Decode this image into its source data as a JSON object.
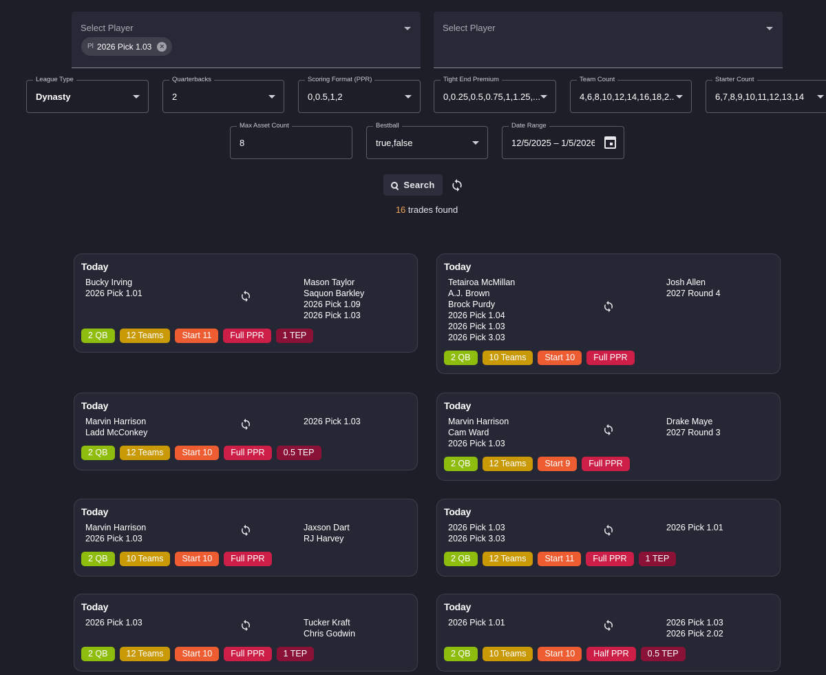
{
  "filters": {
    "player1": {
      "label": "Select Player",
      "chip_avatar": "Pl",
      "chip_label": "2026 Pick 1.03"
    },
    "player2": {
      "label": "Select Player"
    },
    "league_type": {
      "label": "League Type",
      "value": "Dynasty"
    },
    "quarterbacks": {
      "label": "Quarterbacks",
      "value": "2"
    },
    "scoring_format": {
      "label": "Scoring Format (PPR)",
      "value": "0,0.5,1,2"
    },
    "tight_end_premium": {
      "label": "Tight End Premium",
      "value": "0,0.25,0.5,0.75,1,1.25,..."
    },
    "team_count": {
      "label": "Team Count",
      "value": "4,6,8,10,12,14,16,18,2..."
    },
    "starter_count": {
      "label": "Starter Count",
      "value": "6,7,8,9,10,11,12,13,14"
    },
    "max_asset_count": {
      "label": "Max Asset Count",
      "value": "8"
    },
    "bestball": {
      "label": "Bestball",
      "value": "true,false"
    },
    "date_range": {
      "label": "Date Range",
      "value": "12/5/2025 – 1/5/2026"
    }
  },
  "search": {
    "label": "Search",
    "count": "16",
    "found_text": " trades found"
  },
  "colors": {
    "qb": "#8ebd0e",
    "teams": "#c99a06",
    "start": "#ee5c31",
    "ppr": "#cc1e46",
    "tep": "#8a1236"
  },
  "trades": [
    {
      "date": "Today",
      "side_a": [
        "Bucky Irving",
        "2026 Pick 1.01"
      ],
      "side_b": [
        "Mason Taylor",
        "Saquon Barkley",
        "2026 Pick 1.09",
        "2026 Pick 1.03"
      ],
      "badges": [
        "2 QB",
        "12 Teams",
        "Start 11",
        "Full PPR",
        "1 TEP"
      ]
    },
    {
      "date": "Today",
      "side_a": [
        "Tetairoa McMillan",
        "A.J. Brown",
        "Brock Purdy",
        "2026 Pick 1.04",
        "2026 Pick 1.03",
        "2026 Pick 3.03"
      ],
      "side_b": [
        "Josh Allen",
        "2027 Round 4"
      ],
      "badges": [
        "2 QB",
        "10 Teams",
        "Start 10",
        "Full PPR"
      ]
    },
    {
      "date": "Today",
      "side_a": [
        "Marvin Harrison",
        "Ladd McConkey"
      ],
      "side_b": [
        "2026 Pick 1.03"
      ],
      "badges": [
        "2 QB",
        "12 Teams",
        "Start 10",
        "Full PPR",
        "0.5 TEP"
      ]
    },
    {
      "date": "Today",
      "side_a": [
        "Marvin Harrison",
        "Cam Ward",
        "2026 Pick 1.03"
      ],
      "side_b": [
        "Drake Maye",
        "2027 Round 3"
      ],
      "badges": [
        "2 QB",
        "12 Teams",
        "Start 9",
        "Full PPR"
      ]
    },
    {
      "date": "Today",
      "side_a": [
        "Marvin Harrison",
        "2026 Pick 1.03"
      ],
      "side_b": [
        "Jaxson Dart",
        "RJ Harvey"
      ],
      "badges": [
        "2 QB",
        "10 Teams",
        "Start 10",
        "Full PPR"
      ]
    },
    {
      "date": "Today",
      "side_a": [
        "2026 Pick 1.03",
        "2026 Pick 3.03"
      ],
      "side_b": [
        "2026 Pick 1.01"
      ],
      "badges": [
        "2 QB",
        "12 Teams",
        "Start 11",
        "Full PPR",
        "1 TEP"
      ]
    },
    {
      "date": "Today",
      "side_a": [
        "2026 Pick 1.03"
      ],
      "side_b": [
        "Tucker Kraft",
        "Chris Godwin"
      ],
      "badges": [
        "2 QB",
        "12 Teams",
        "Start 10",
        "Full PPR",
        "1 TEP"
      ]
    },
    {
      "date": "Today",
      "side_a": [
        "2026 Pick 1.01"
      ],
      "side_b": [
        "2026 Pick 1.03",
        "2026 Pick 2.02"
      ],
      "badges": [
        "2 QB",
        "10 Teams",
        "Start 10",
        "Half PPR",
        "0.5 TEP"
      ]
    }
  ]
}
